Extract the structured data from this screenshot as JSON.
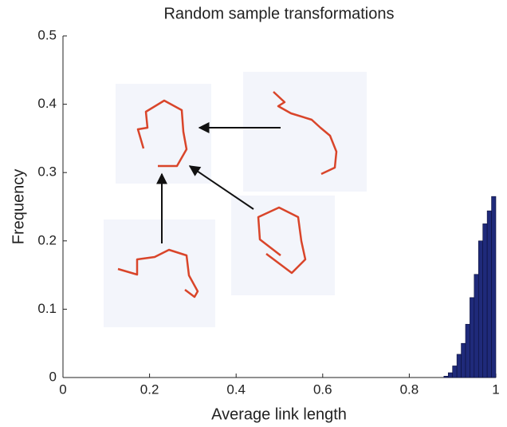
{
  "chart_data": {
    "type": "histogram",
    "title": "Random sample transformations",
    "xlabel": "Average link length",
    "ylabel": "Frequency",
    "bins": [
      0.88,
      0.89,
      0.9,
      0.91,
      0.92,
      0.93,
      0.94,
      0.95,
      0.96,
      0.97,
      0.98,
      0.99,
      1.0
    ],
    "values": [
      0.002,
      0.007,
      0.017,
      0.034,
      0.05,
      0.078,
      0.117,
      0.151,
      0.2,
      0.225,
      0.244,
      0.265
    ],
    "color": "#1f2a7a",
    "xlim": [
      0,
      1
    ],
    "xticks": [
      0,
      0.2,
      0.4,
      0.6,
      0.8,
      1
    ],
    "ylim": [
      0,
      0.5
    ],
    "yticks": [
      0,
      0.1,
      0.2,
      0.3,
      0.4,
      0.5
    ]
  }
}
